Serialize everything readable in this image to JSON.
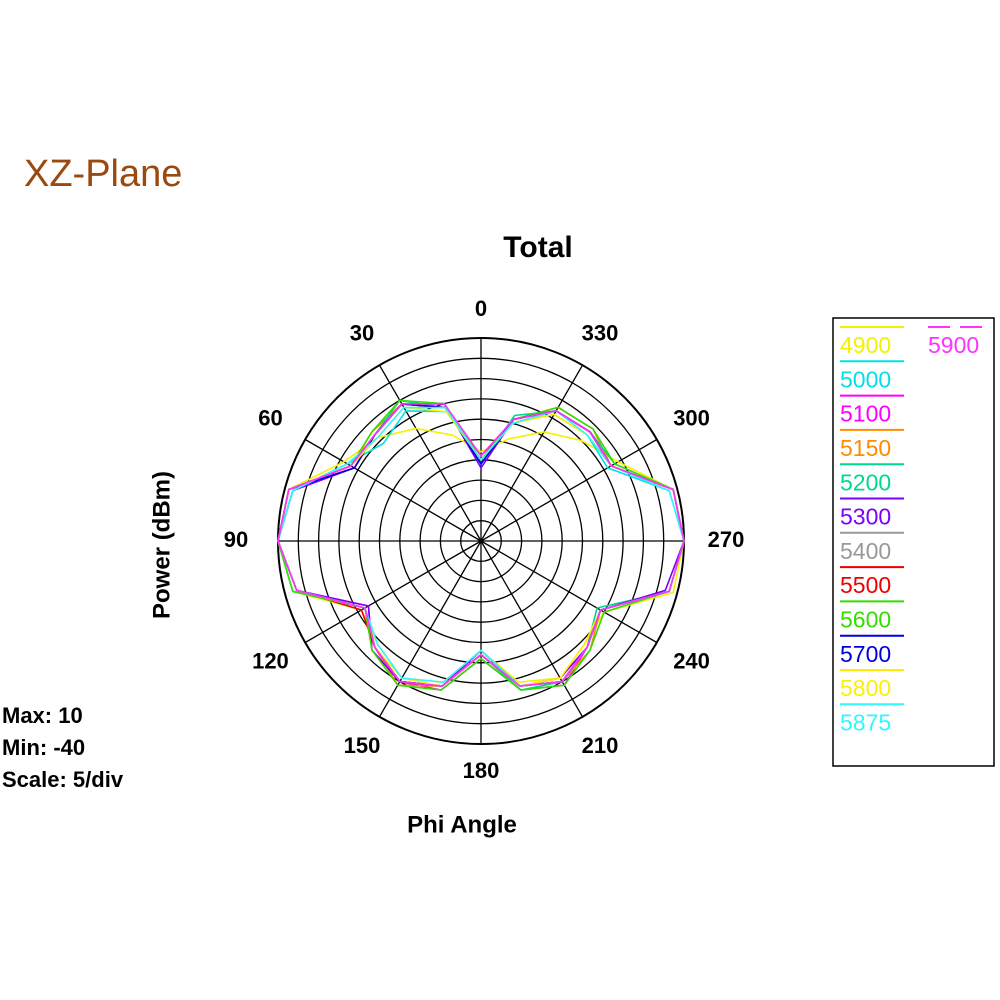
{
  "chart_data": {
    "type": "polar",
    "plane_title": "XZ-Plane",
    "title": "Total",
    "ylabel": "Power (dBm)",
    "xlabel": "Phi Angle",
    "info": [
      "Max: 10",
      "Min: -40",
      "Scale: 5/div"
    ],
    "rlim": [
      -40,
      10
    ],
    "rticks": [
      -40,
      -35,
      -30,
      -25,
      -20,
      -15,
      -10,
      -5,
      0,
      5,
      10
    ],
    "angle_ticks": [
      0,
      30,
      60,
      90,
      120,
      150,
      180,
      210,
      240,
      270,
      300,
      330
    ],
    "direction": "counterclockwise",
    "zero_location": "top",
    "legend": "right",
    "theta": [
      0,
      15,
      30,
      45,
      60,
      75,
      90,
      105,
      120,
      135,
      150,
      165,
      180,
      195,
      210,
      225,
      240,
      255,
      270,
      285,
      300,
      315,
      330,
      345
    ],
    "series": [
      {
        "name": "4900",
        "color": "#f2f200",
        "values": [
          -18,
          -13,
          -8,
          -4,
          -1,
          9,
          10,
          8,
          -6,
          -4,
          -1,
          -4,
          -13,
          -4,
          -1,
          -4,
          -5,
          9,
          10,
          9,
          -1,
          -5,
          -9,
          -14
        ]
      },
      {
        "name": "5000",
        "color": "#00e0e8",
        "values": [
          -20,
          -7,
          -3,
          -6,
          -2,
          8,
          10,
          8,
          -7,
          -3,
          0,
          -3,
          -12,
          -3,
          0,
          -3,
          -6,
          8,
          10,
          8,
          -4,
          -3,
          -4,
          -10
        ]
      },
      {
        "name": "5100",
        "color": "#ff00ff",
        "values": [
          -21,
          -5,
          -1,
          -3,
          -4,
          9,
          10,
          7,
          -8,
          -2,
          0,
          -2,
          -11,
          -2,
          1,
          -3,
          -6,
          8,
          10,
          9,
          -3,
          -2,
          -3,
          -9
        ]
      },
      {
        "name": "5150",
        "color": "#ff8c00",
        "values": [
          -20,
          -6,
          -1,
          -2,
          -3,
          9,
          10,
          7,
          -7,
          -3,
          1,
          -3,
          -12,
          -3,
          0,
          -2,
          -6,
          8,
          10,
          9,
          -3,
          -1,
          -2,
          -9
        ]
      },
      {
        "name": "5200",
        "color": "#00d98a",
        "values": [
          -21,
          -6,
          0,
          -3,
          -3,
          9,
          10,
          7,
          -7,
          -3,
          0,
          -3,
          -12,
          -2,
          0,
          -3,
          -7,
          8,
          10,
          9,
          -2,
          -2,
          -3,
          -8
        ]
      },
      {
        "name": "5300",
        "color": "#7a00ff",
        "values": [
          -22,
          -5,
          -1,
          -3,
          -4,
          8,
          10,
          7,
          -8,
          -2,
          0,
          -3,
          -13,
          -3,
          -1,
          -3,
          -6,
          7,
          10,
          9,
          -3,
          -2,
          -3,
          -9
        ]
      },
      {
        "name": "5400",
        "color": "#999999",
        "values": [
          -20,
          -6,
          -1,
          -3,
          -3,
          9,
          10,
          7,
          -7,
          -3,
          0,
          -3,
          -12,
          -3,
          0,
          -3,
          -6,
          8,
          10,
          9,
          -3,
          -2,
          -3,
          -9
        ]
      },
      {
        "name": "5500",
        "color": "#ee0000",
        "values": [
          -19,
          -6,
          -1,
          -3,
          -3,
          9,
          10,
          7,
          -6,
          -3,
          0,
          -3,
          -12,
          -3,
          0,
          -3,
          -6,
          8,
          10,
          9,
          -3,
          -2,
          -3,
          -10
        ]
      },
      {
        "name": "5600",
        "color": "#33dd00",
        "values": [
          -20,
          -5,
          0,
          -2,
          -3,
          9,
          10,
          8,
          -7,
          -2,
          1,
          -2,
          -11,
          -2,
          1,
          -2,
          -5,
          8,
          10,
          9,
          -2,
          -1,
          -2,
          -9
        ]
      },
      {
        "name": "5700",
        "color": "#0000dd",
        "values": [
          -21,
          -6,
          -1,
          -3,
          -4,
          9,
          10,
          7,
          -7,
          -3,
          0,
          -3,
          -12,
          -3,
          0,
          -3,
          -6,
          8,
          10,
          9,
          -3,
          -2,
          -3,
          -9
        ]
      },
      {
        "name": "5800",
        "color": "#ffee00",
        "values": [
          -20,
          -7,
          -2,
          -4,
          -3,
          9,
          10,
          7,
          -7,
          -3,
          -1,
          -3,
          -12,
          -3,
          -1,
          -4,
          -6,
          8,
          10,
          9,
          -3,
          -3,
          -4,
          -10
        ]
      },
      {
        "name": "5875",
        "color": "#33f5ff",
        "values": [
          -20,
          -6,
          -2,
          -4,
          -2,
          8,
          10,
          7,
          -7,
          -4,
          -1,
          -4,
          -13,
          -3,
          0,
          -3,
          -6,
          8,
          10,
          8,
          -3,
          -3,
          -3,
          -10
        ]
      },
      {
        "name": "5900",
        "color": "#ff33ff",
        "values": [
          -19,
          -5,
          -1,
          -3,
          -3,
          9,
          10,
          7,
          -7,
          -3,
          0,
          -3,
          -12,
          -3,
          0,
          -3,
          -6,
          8,
          10,
          9,
          -3,
          -2,
          -3,
          -9
        ]
      }
    ]
  }
}
